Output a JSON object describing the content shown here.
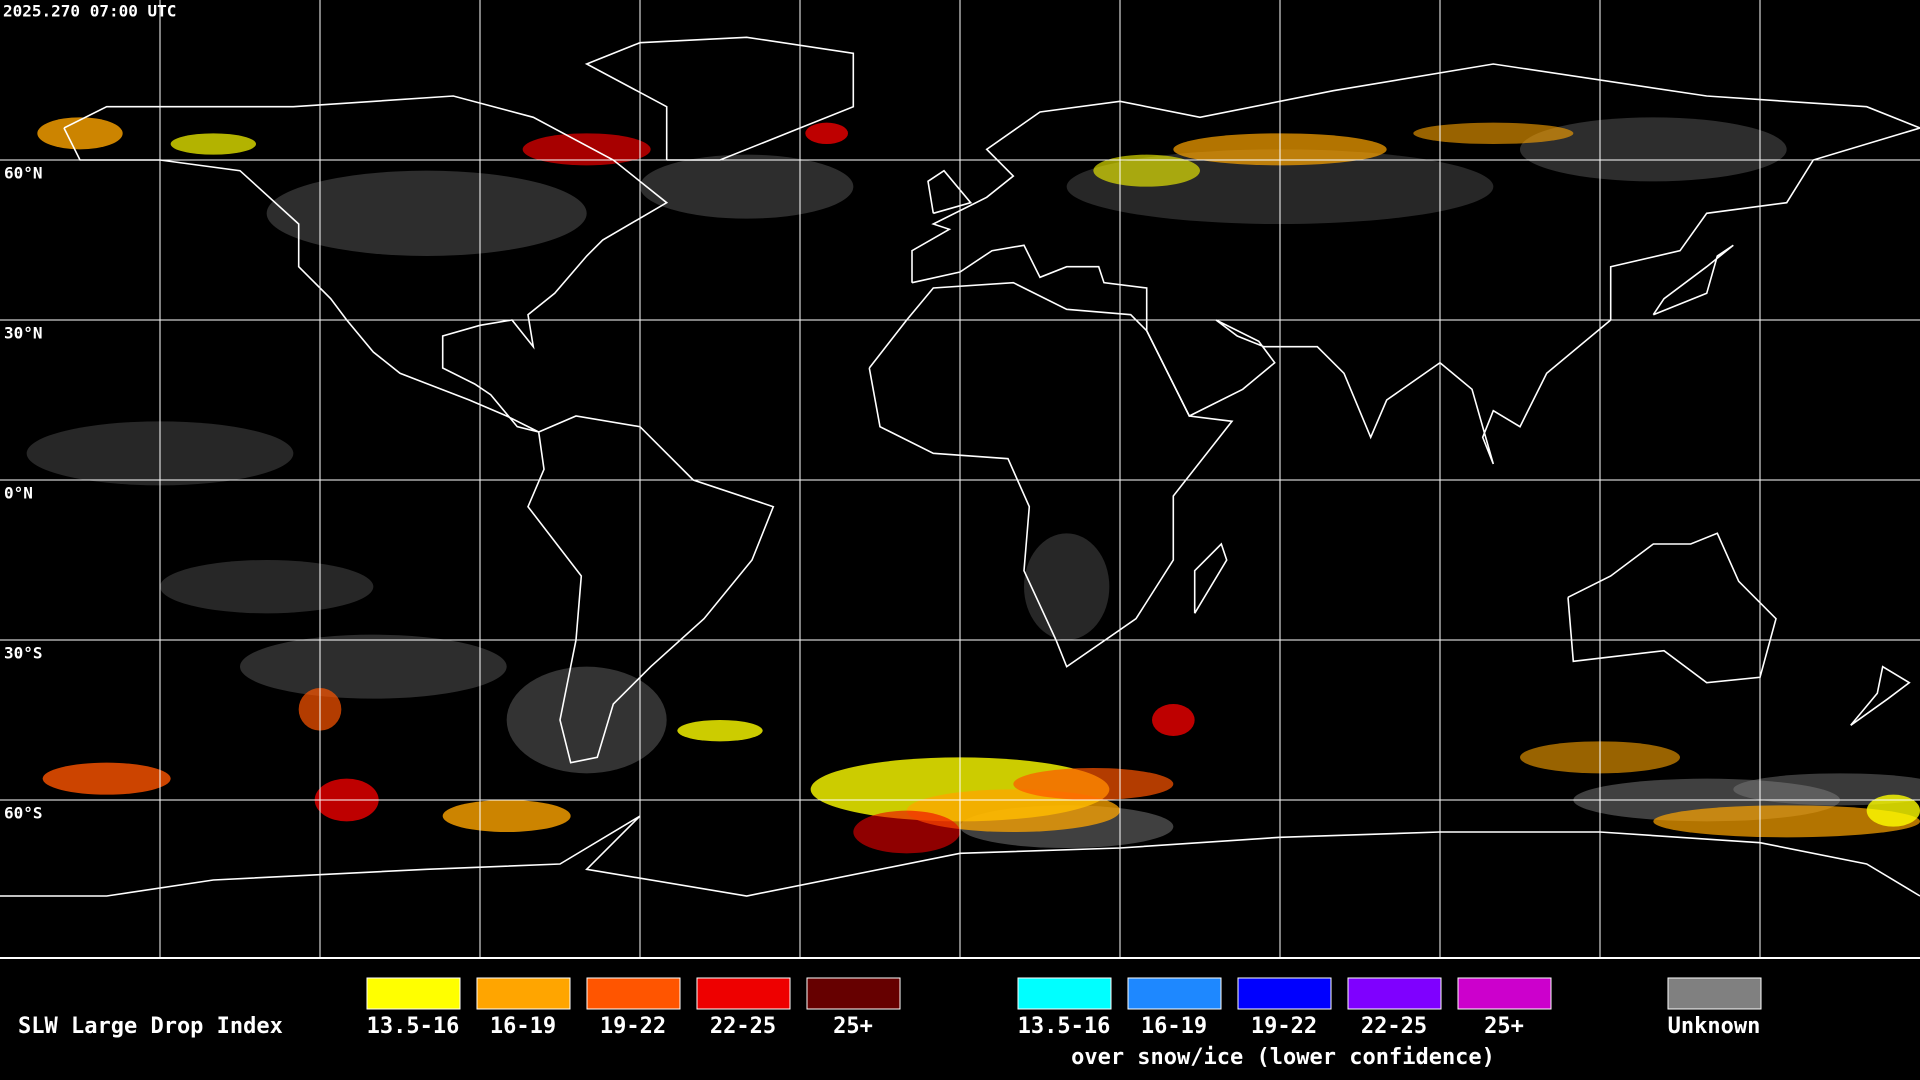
{
  "header": {
    "timestamp": "2025.270 07:00 UTC"
  },
  "latitude_labels": [
    "60°N",
    "30°N",
    "0°N",
    "30°S",
    "60°S"
  ],
  "legend": {
    "title": "SLW Large Drop Index",
    "groups": [
      {
        "items": [
          {
            "label": "13.5-16",
            "color": "#ffff00"
          },
          {
            "label": "16-19",
            "color": "#ffa500"
          },
          {
            "label": "19-22",
            "color": "#ff5500"
          },
          {
            "label": "22-25",
            "color": "#ee0000"
          },
          {
            "label": "25+",
            "color": "#660000"
          }
        ]
      },
      {
        "items": [
          {
            "label": "13.5-16",
            "color": "#00ffff"
          },
          {
            "label": "16-19",
            "color": "#1e88ff"
          },
          {
            "label": "19-22",
            "color": "#0000ff"
          },
          {
            "label": "22-25",
            "color": "#7f00ff"
          },
          {
            "label": "25+",
            "color": "#cc00cc"
          }
        ],
        "caption": "over snow/ice (lower confidence)"
      },
      {
        "items": [
          {
            "label": "Unknown",
            "color": "#808080"
          }
        ]
      }
    ]
  }
}
